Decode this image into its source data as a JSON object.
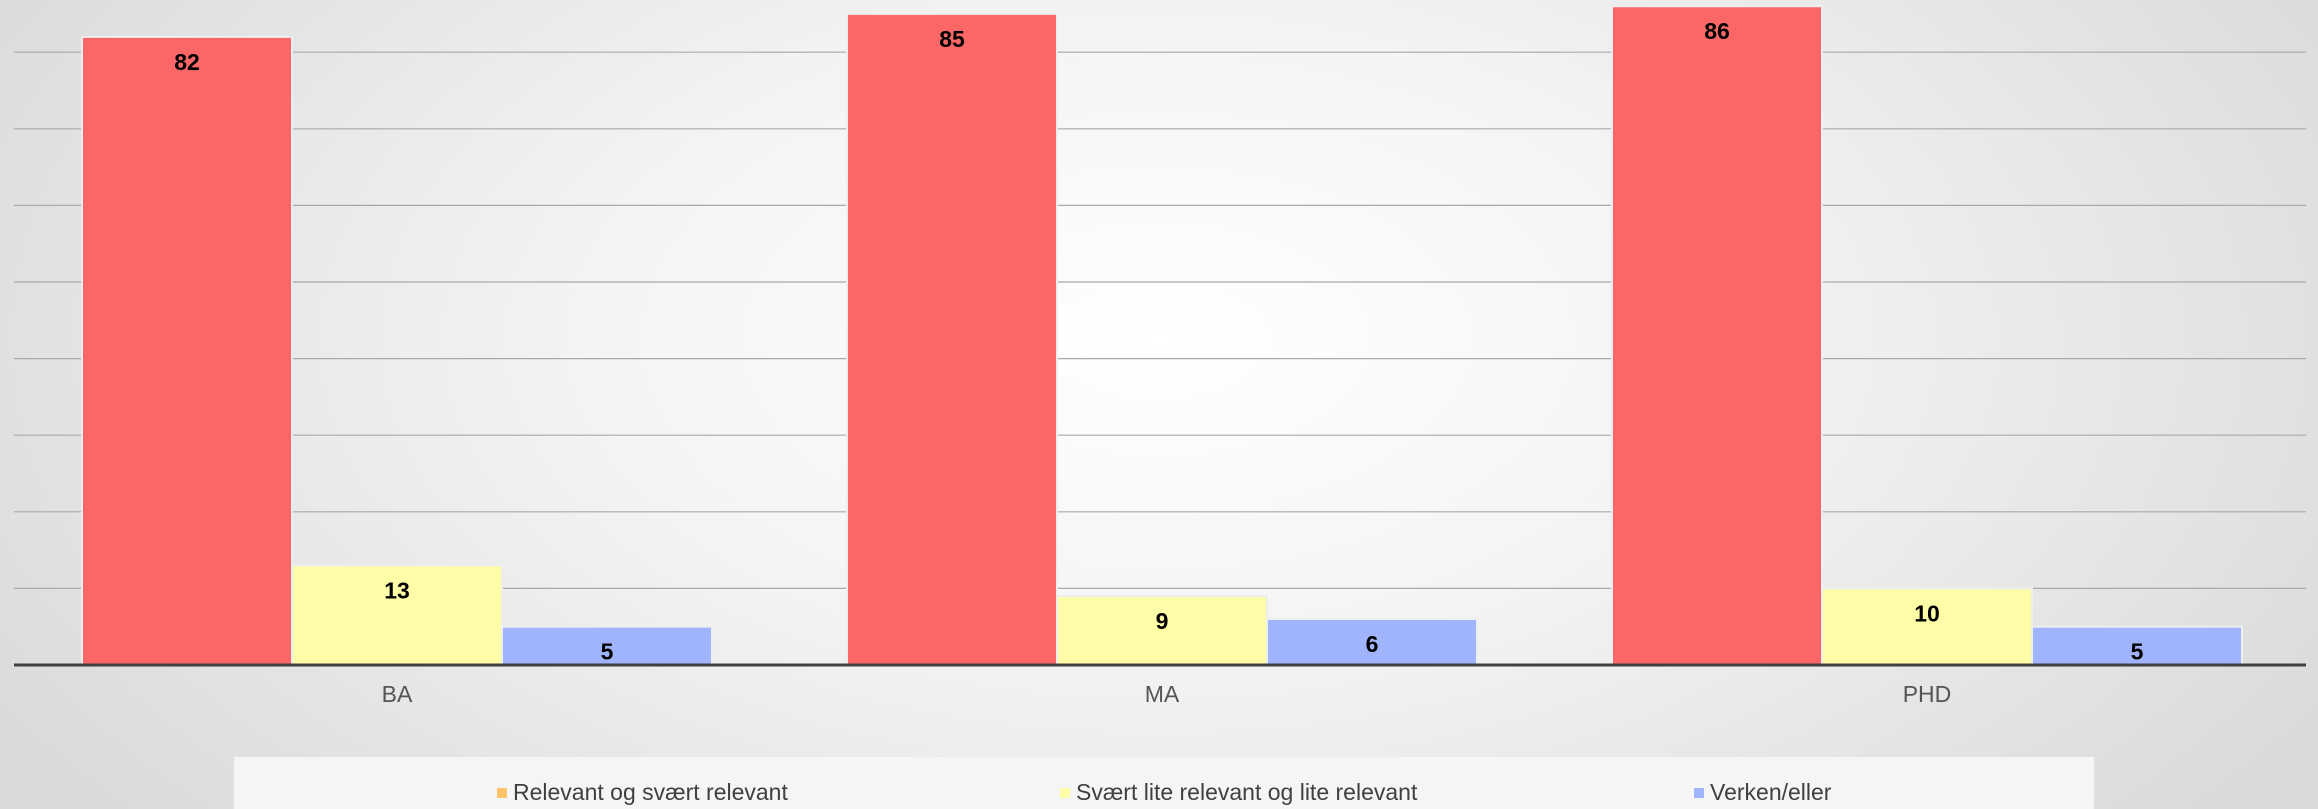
{
  "chart_data": {
    "type": "bar",
    "categories": [
      "BA",
      "MA",
      "PHD"
    ],
    "series": [
      {
        "name": "Relevant og svært relevant",
        "values": [
          82,
          85,
          86
        ],
        "color": "#fb6767",
        "legend_color": "#ffc46b"
      },
      {
        "name": "Svært lite relevant og lite relevant",
        "values": [
          13,
          9,
          10
        ],
        "color": "#fffca8",
        "legend_color": "#fffca8"
      },
      {
        "name": "Verken/eller",
        "values": [
          5,
          6,
          5
        ],
        "color": "#9fb4fc",
        "legend_color": "#9fb4fc"
      }
    ],
    "ylim": [
      0,
      80
    ],
    "gridlines": true,
    "legend_position": "bottom",
    "title": "",
    "xlabel": "",
    "ylabel": ""
  }
}
